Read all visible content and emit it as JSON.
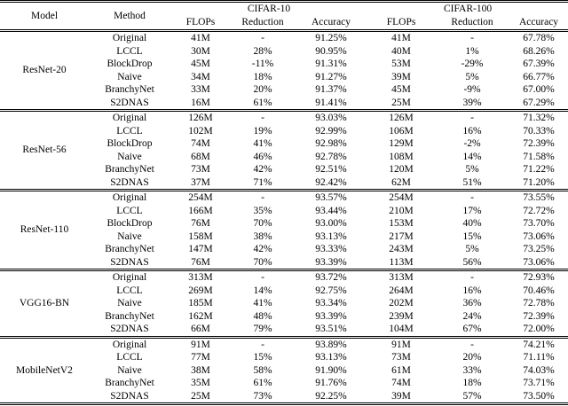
{
  "colors": {
    "text": "#000000",
    "rule": "#000000",
    "background": "#ffffff"
  },
  "table": {
    "header": {
      "model": "Model",
      "method": "Method",
      "group1": "CIFAR-10",
      "group2": "CIFAR-100",
      "subcols": [
        "FLOPs",
        "Reduction",
        "Accuracy",
        "FLOPs",
        "Reduction",
        "Accuracy"
      ]
    },
    "sections": [
      {
        "model": "ResNet-20",
        "rows": [
          [
            "Original",
            "41M",
            "-",
            "91.25%",
            "41M",
            "-",
            "67.78%"
          ],
          [
            "LCCL",
            "30M",
            "28%",
            "90.95%",
            "40M",
            "1%",
            "68.26%"
          ],
          [
            "BlockDrop",
            "45M",
            "-11%",
            "91.31%",
            "53M",
            "-29%",
            "67.39%"
          ],
          [
            "Naive",
            "34M",
            "18%",
            "91.27%",
            "39M",
            "5%",
            "66.77%"
          ],
          [
            "BranchyNet",
            "33M",
            "20%",
            "91.37%",
            "45M",
            "-9%",
            "67.00%"
          ],
          [
            "S2DNAS",
            "16M",
            "61%",
            "91.41%",
            "25M",
            "39%",
            "67.29%"
          ]
        ]
      },
      {
        "model": "ResNet-56",
        "rows": [
          [
            "Original",
            "126M",
            "-",
            "93.03%",
            "126M",
            "-",
            "71.32%"
          ],
          [
            "LCCL",
            "102M",
            "19%",
            "92.99%",
            "106M",
            "16%",
            "70.33%"
          ],
          [
            "BlockDrop",
            "74M",
            "41%",
            "92.98%",
            "129M",
            "-2%",
            "72.39%"
          ],
          [
            "Naive",
            "68M",
            "46%",
            "92.78%",
            "108M",
            "14%",
            "71.58%"
          ],
          [
            "BranchyNet",
            "73M",
            "42%",
            "92.51%",
            "120M",
            "5%",
            "71.22%"
          ],
          [
            "S2DNAS",
            "37M",
            "71%",
            "92.42%",
            "62M",
            "51%",
            "71.20%"
          ]
        ]
      },
      {
        "model": "ResNet-110",
        "rows": [
          [
            "Original",
            "254M",
            "-",
            "93.57%",
            "254M",
            "-",
            "73.55%"
          ],
          [
            "LCCL",
            "166M",
            "35%",
            "93.44%",
            "210M",
            "17%",
            "72.72%"
          ],
          [
            "BlockDrop",
            "76M",
            "70%",
            "93.00%",
            "153M",
            "40%",
            "73.70%"
          ],
          [
            "Naive",
            "158M",
            "38%",
            "93.13%",
            "217M",
            "15%",
            "73.06%"
          ],
          [
            "BranchyNet",
            "147M",
            "42%",
            "93.33%",
            "243M",
            "5%",
            "73.25%"
          ],
          [
            "S2DNAS",
            "76M",
            "70%",
            "93.39%",
            "113M",
            "56%",
            "73.06%"
          ]
        ]
      },
      {
        "model": "VGG16-BN",
        "rows": [
          [
            "Original",
            "313M",
            "-",
            "93.72%",
            "313M",
            "-",
            "72.93%"
          ],
          [
            "LCCL",
            "269M",
            "14%",
            "92.75%",
            "264M",
            "16%",
            "70.46%"
          ],
          [
            "Naive",
            "185M",
            "41%",
            "93.34%",
            "202M",
            "36%",
            "72.78%"
          ],
          [
            "BranchyNet",
            "162M",
            "48%",
            "93.39%",
            "239M",
            "24%",
            "72.39%"
          ],
          [
            "S2DNAS",
            "66M",
            "79%",
            "93.51%",
            "104M",
            "67%",
            "72.00%"
          ]
        ]
      },
      {
        "model": "MobileNetV2",
        "rows": [
          [
            "Original",
            "91M",
            "-",
            "93.89%",
            "91M",
            "-",
            "74.21%"
          ],
          [
            "LCCL",
            "77M",
            "15%",
            "93.13%",
            "73M",
            "20%",
            "71.11%"
          ],
          [
            "Naive",
            "38M",
            "58%",
            "91.90%",
            "61M",
            "33%",
            "74.03%"
          ],
          [
            "BranchyNet",
            "35M",
            "61%",
            "91.76%",
            "74M",
            "18%",
            "73.71%"
          ],
          [
            "S2DNAS",
            "25M",
            "73%",
            "92.25%",
            "39M",
            "57%",
            "73.50%"
          ]
        ]
      }
    ]
  }
}
